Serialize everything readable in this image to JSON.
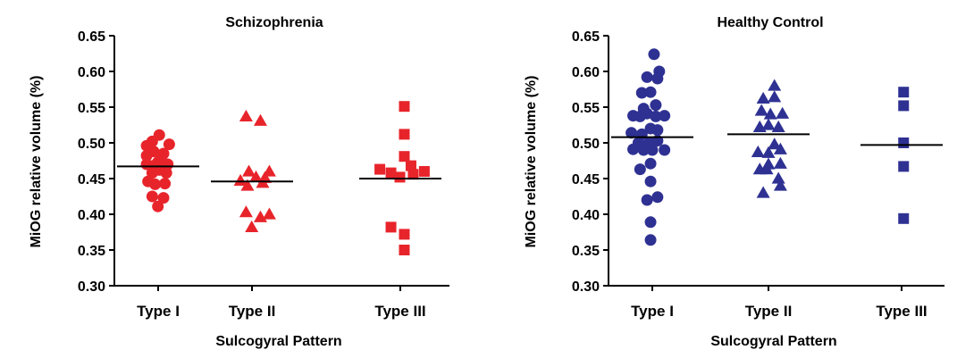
{
  "chart_data": [
    {
      "type": "scatter",
      "title": "Schizophrenia",
      "xlabel": "Sulcogyral Pattern",
      "ylabel": "MiOG relative volume (%)",
      "ylim": [
        0.3,
        0.65
      ],
      "yticks": [
        "0.65",
        "0.60",
        "0.55",
        "0.50",
        "0.45",
        "0.40",
        "0.35",
        "0.30"
      ],
      "categories": [
        "Type I",
        "Type II",
        "Type III"
      ],
      "color": "#e8242b",
      "markers": [
        "circle",
        "triangle",
        "square"
      ],
      "groups": [
        {
          "category": "Type I",
          "mean": 0.467,
          "points": [
            {
              "x": 0.877,
              "y": 0.496
            },
            {
              "x": 0.937,
              "y": 0.502
            },
            {
              "x": 1.012,
              "y": 0.511
            },
            {
              "x": 1.118,
              "y": 0.498
            },
            {
              "x": 0.877,
              "y": 0.482
            },
            {
              "x": 0.952,
              "y": 0.488
            },
            {
              "x": 1.057,
              "y": 0.485
            },
            {
              "x": 0.997,
              "y": 0.473
            },
            {
              "x": 0.877,
              "y": 0.47
            },
            {
              "x": 0.952,
              "y": 0.468
            },
            {
              "x": 1.027,
              "y": 0.476
            },
            {
              "x": 1.102,
              "y": 0.47
            },
            {
              "x": 1.012,
              "y": 0.462
            },
            {
              "x": 0.937,
              "y": 0.458
            },
            {
              "x": 1.087,
              "y": 0.458
            },
            {
              "x": 0.892,
              "y": 0.446
            },
            {
              "x": 0.967,
              "y": 0.442
            },
            {
              "x": 1.072,
              "y": 0.443
            },
            {
              "x": 0.937,
              "y": 0.425
            },
            {
              "x": 1.057,
              "y": 0.423
            },
            {
              "x": 0.997,
              "y": 0.411
            }
          ]
        },
        {
          "category": "Type II",
          "mean": 0.446,
          "points": [
            {
              "x": 1.937,
              "y": 0.537
            },
            {
              "x": 2.057,
              "y": 0.531
            },
            {
              "x": 1.967,
              "y": 0.46
            },
            {
              "x": 2.117,
              "y": 0.46
            },
            {
              "x": 1.877,
              "y": 0.447
            },
            {
              "x": 2.027,
              "y": 0.452
            },
            {
              "x": 2.087,
              "y": 0.451
            },
            {
              "x": 1.952,
              "y": 0.44
            },
            {
              "x": 2.072,
              "y": 0.444
            },
            {
              "x": 1.937,
              "y": 0.403
            },
            {
              "x": 2.117,
              "y": 0.4
            },
            {
              "x": 2.057,
              "y": 0.396
            },
            {
              "x": 1.997,
              "y": 0.382
            }
          ]
        },
        {
          "category": "Type III",
          "mean": 0.45,
          "points": [
            {
              "x": 3.027,
              "y": 0.551
            },
            {
              "x": 3.027,
              "y": 0.512
            },
            {
              "x": 3.027,
              "y": 0.481
            },
            {
              "x": 2.862,
              "y": 0.463
            },
            {
              "x": 2.937,
              "y": 0.458
            },
            {
              "x": 3.072,
              "y": 0.468
            },
            {
              "x": 3.162,
              "y": 0.46
            },
            {
              "x": 2.997,
              "y": 0.452
            },
            {
              "x": 3.087,
              "y": 0.456
            },
            {
              "x": 2.937,
              "y": 0.382
            },
            {
              "x": 3.027,
              "y": 0.372
            },
            {
              "x": 3.027,
              "y": 0.35
            }
          ]
        }
      ]
    },
    {
      "type": "scatter",
      "title": "Healthy Control",
      "xlabel": "Sulcogyral Pattern",
      "ylabel": "MiOG relative volume (%)",
      "ylim": [
        0.3,
        0.65
      ],
      "yticks": [
        "0.65",
        "0.60",
        "0.55",
        "0.50",
        "0.45",
        "0.40",
        "0.35",
        "0.30"
      ],
      "categories": [
        "Type I",
        "Type II",
        "Type III"
      ],
      "color": "#2e3192",
      "markers": [
        "circle",
        "triangle",
        "square"
      ],
      "groups": [
        {
          "category": "Type I",
          "mean": 0.508,
          "points": [
            {
              "x": 1.015,
              "y": 0.624
            },
            {
              "x": 0.955,
              "y": 0.592
            },
            {
              "x": 1.06,
              "y": 0.6
            },
            {
              "x": 1.045,
              "y": 0.59
            },
            {
              "x": 0.91,
              "y": 0.57
            },
            {
              "x": 0.985,
              "y": 0.571
            },
            {
              "x": 0.925,
              "y": 0.548
            },
            {
              "x": 1.03,
              "y": 0.553
            },
            {
              "x": 0.835,
              "y": 0.538
            },
            {
              "x": 0.895,
              "y": 0.537
            },
            {
              "x": 0.955,
              "y": 0.541
            },
            {
              "x": 1.03,
              "y": 0.537
            },
            {
              "x": 1.105,
              "y": 0.538
            },
            {
              "x": 0.82,
              "y": 0.514
            },
            {
              "x": 0.91,
              "y": 0.512
            },
            {
              "x": 0.985,
              "y": 0.52
            },
            {
              "x": 1.045,
              "y": 0.518
            },
            {
              "x": 0.88,
              "y": 0.5
            },
            {
              "x": 0.97,
              "y": 0.5
            },
            {
              "x": 1.045,
              "y": 0.503
            },
            {
              "x": 0.835,
              "y": 0.491
            },
            {
              "x": 0.925,
              "y": 0.49
            },
            {
              "x": 1.0,
              "y": 0.49
            },
            {
              "x": 1.105,
              "y": 0.49
            },
            {
              "x": 0.895,
              "y": 0.463
            },
            {
              "x": 0.985,
              "y": 0.471
            },
            {
              "x": 0.985,
              "y": 0.446
            },
            {
              "x": 0.955,
              "y": 0.42
            },
            {
              "x": 1.045,
              "y": 0.424
            },
            {
              "x": 0.985,
              "y": 0.389
            },
            {
              "x": 0.985,
              "y": 0.364
            }
          ]
        },
        {
          "category": "Type II",
          "mean": 0.512,
          "points": [
            {
              "x": 2.045,
              "y": 0.58
            },
            {
              "x": 1.955,
              "y": 0.562
            },
            {
              "x": 2.045,
              "y": 0.564
            },
            {
              "x": 1.94,
              "y": 0.545
            },
            {
              "x": 2.015,
              "y": 0.54
            },
            {
              "x": 2.105,
              "y": 0.541
            },
            {
              "x": 1.925,
              "y": 0.522
            },
            {
              "x": 2.0,
              "y": 0.525
            },
            {
              "x": 2.075,
              "y": 0.522
            },
            {
              "x": 2.045,
              "y": 0.498
            },
            {
              "x": 1.91,
              "y": 0.487
            },
            {
              "x": 2.0,
              "y": 0.486
            },
            {
              "x": 2.09,
              "y": 0.491
            },
            {
              "x": 1.925,
              "y": 0.463
            },
            {
              "x": 2.0,
              "y": 0.47
            },
            {
              "x": 2.09,
              "y": 0.471
            },
            {
              "x": 1.985,
              "y": 0.463
            },
            {
              "x": 2.075,
              "y": 0.45
            },
            {
              "x": 1.955,
              "y": 0.43
            },
            {
              "x": 2.09,
              "y": 0.44
            }
          ]
        },
        {
          "category": "Type III",
          "mean": 0.497,
          "points": [
            {
              "x": 3.015,
              "y": 0.571
            },
            {
              "x": 3.015,
              "y": 0.552
            },
            {
              "x": 3.015,
              "y": 0.5
            },
            {
              "x": 3.015,
              "y": 0.467
            },
            {
              "x": 3.015,
              "y": 0.394
            }
          ]
        }
      ]
    }
  ]
}
